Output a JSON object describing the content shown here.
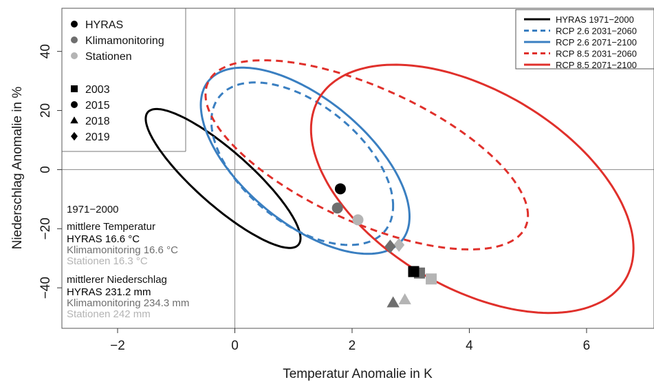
{
  "chart_data": {
    "type": "scatter",
    "xlabel": "Temperatur Anomalie in K",
    "ylabel": "Niederschlag Anomalie in %",
    "xlim": [
      -2.95,
      7.15
    ],
    "ylim": [
      -53.7,
      54.6
    ],
    "x_ticks": [
      -2,
      0,
      2,
      4,
      6
    ],
    "y_ticks": [
      -40,
      -20,
      0,
      20,
      40
    ],
    "x_tick_labels": [
      "−2",
      "0",
      "2",
      "4",
      "6"
    ],
    "y_tick_labels": [
      "−40",
      "−20",
      "0",
      "20",
      "40"
    ],
    "grid": "reference lines at x = 0 and y = 0",
    "colors": {
      "hyras": "#000000",
      "klimamonitoring": "#6e6e6e",
      "stationen": "#b4b4b4",
      "rcp26": "#3a7fc1",
      "rcp85": "#e0302b"
    },
    "legend_left": {
      "placement": "top-left",
      "sources": [
        {
          "label": "HYRAS",
          "color": "#000000"
        },
        {
          "label": "Klimamonitoring",
          "color": "#6e6e6e"
        },
        {
          "label": "Stationen",
          "color": "#b4b4b4"
        }
      ],
      "years": [
        {
          "label": "2003",
          "shape": "square"
        },
        {
          "label": "2015",
          "shape": "circle"
        },
        {
          "label": "2018",
          "shape": "triangle"
        },
        {
          "label": "2019",
          "shape": "diamond"
        }
      ]
    },
    "legend_right": {
      "placement": "top-right",
      "entries": [
        {
          "label": "HYRAS 1971−2000",
          "color": "#000000",
          "dash": false
        },
        {
          "label": "RCP 2.6 2031−2060",
          "color": "#3a7fc1",
          "dash": true
        },
        {
          "label": "RCP 2.6 2071−2100",
          "color": "#3a7fc1",
          "dash": false
        },
        {
          "label": "RCP 8.5 2031−2060",
          "color": "#e0302b",
          "dash": true
        },
        {
          "label": "RCP 8.5 2071−2100",
          "color": "#e0302b",
          "dash": false
        }
      ]
    },
    "ellipses": [
      {
        "name": "HYRAS 1971−2000",
        "color": "#000000",
        "dash": false,
        "center": [
          -0.2,
          -3
        ],
        "semi_axes": [
          1.32,
          23.5
        ],
        "slant": -0.86
      },
      {
        "name": "RCP 2.6 2031−2060",
        "color": "#3a7fc1",
        "dash": true,
        "center": [
          1.15,
          2
        ],
        "semi_axes": [
          1.55,
          27.5
        ],
        "slant": -0.52
      },
      {
        "name": "RCP 2.6 2071−2100",
        "color": "#3a7fc1",
        "dash": false,
        "center": [
          1.2,
          3
        ],
        "semi_axes": [
          1.78,
          31.5
        ],
        "slant": -0.6
      },
      {
        "name": "RCP 8.5 2031−2060",
        "color": "#e0302b",
        "dash": true,
        "center": [
          2.25,
          5
        ],
        "semi_axes": [
          2.75,
          32
        ],
        "slant": -0.64
      },
      {
        "name": "RCP 8.5 2071−2100",
        "color": "#e0302b",
        "dash": false,
        "center": [
          4.05,
          -6.5
        ],
        "semi_axes": [
          2.75,
          42
        ],
        "slant": -0.48
      }
    ],
    "points": [
      {
        "source": "HYRAS",
        "year": "2015",
        "shape": "circle",
        "x": 1.8,
        "y": -6.5
      },
      {
        "source": "Klimamonitoring",
        "year": "2015",
        "shape": "circle",
        "x": 1.75,
        "y": -13
      },
      {
        "source": "Stationen",
        "year": "2015",
        "shape": "circle",
        "x": 2.1,
        "y": -17
      },
      {
        "source": "Klimamonitoring",
        "year": "2019",
        "shape": "diamond",
        "x": 2.65,
        "y": -26
      },
      {
        "source": "Stationen",
        "year": "2019",
        "shape": "diamond",
        "x": 2.8,
        "y": -25.5
      },
      {
        "source": "HYRAS",
        "year": "2003",
        "shape": "square",
        "x": 3.05,
        "y": -34.5
      },
      {
        "source": "Klimamonitoring",
        "year": "2003",
        "shape": "square",
        "x": 3.15,
        "y": -35
      },
      {
        "source": "Stationen",
        "year": "2003",
        "shape": "square",
        "x": 3.35,
        "y": -37
      },
      {
        "source": "Klimamonitoring",
        "year": "2018",
        "shape": "triangle",
        "x": 2.7,
        "y": -45
      },
      {
        "source": "Stationen",
        "year": "2018",
        "shape": "triangle",
        "x": 2.9,
        "y": -44
      }
    ],
    "annotation": {
      "period": "1971−2000",
      "temp_heading": "mittlere Temperatur",
      "temp_values": [
        {
          "text": "HYRAS 16.6 °C",
          "color": "#000000"
        },
        {
          "text": "Klimamonitoring 16.6 °C",
          "color": "#6e6e6e"
        },
        {
          "text": "Stationen 16.3 °C",
          "color": "#b4b4b4"
        }
      ],
      "precip_heading": "mittlerer Niederschlag",
      "precip_values": [
        {
          "text": "HYRAS 231.2 mm",
          "color": "#000000"
        },
        {
          "text": "Klimamonitoring 234.3 mm",
          "color": "#6e6e6e"
        },
        {
          "text": "Stationen 242 mm",
          "color": "#b4b4b4"
        }
      ]
    }
  }
}
